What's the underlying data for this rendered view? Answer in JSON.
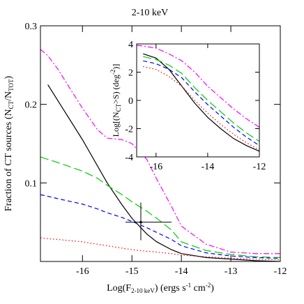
{
  "chart_data": [
    {
      "type": "line",
      "title": "2-10 keV",
      "xlabel": [
        {
          "text": "Log(F"
        },
        {
          "sub": "2-10 keV"
        },
        {
          "text": ") (ergs s"
        },
        {
          "sup": "-1"
        },
        {
          "text": " cm"
        },
        {
          "sup": "-2"
        },
        {
          "text": ")"
        }
      ],
      "ylabel": [
        {
          "text": "Fraction of CT sources (N"
        },
        {
          "sub": "CT"
        },
        {
          "text": "/N"
        },
        {
          "sub": "TOT"
        },
        {
          "text": ")"
        }
      ],
      "xlim": [
        -16.85,
        -12
      ],
      "ylim": [
        0,
        0.3
      ],
      "xticks": [
        -16,
        -15,
        -14,
        -13,
        -12
      ],
      "yticks": [
        0.1,
        0.2,
        0.3
      ],
      "x": [
        -16.85,
        -16.7,
        -16.5,
        -16,
        -15.7,
        -15.5,
        -15.2,
        -15,
        -14.7,
        -14.5,
        -14.2,
        -14,
        -13.5,
        -13,
        -12.5,
        -12
      ],
      "series": [
        {
          "color": "#000000",
          "linestyle": "solid",
          "values": [
            null,
            0.225,
            0.205,
            0.155,
            0.122,
            0.1,
            0.072,
            0.055,
            0.035,
            0.025,
            0.015,
            0.01,
            0.005,
            0.003,
            0.001,
            0.0
          ]
        },
        {
          "color": "#00cc00",
          "linestyle": "longdash",
          "values": [
            0.133,
            0.13,
            0.126,
            0.115,
            0.106,
            0.097,
            0.085,
            0.076,
            0.064,
            0.055,
            0.04,
            0.025,
            0.014,
            0.009,
            0.006,
            0.005
          ]
        },
        {
          "color": "#0000ff",
          "linestyle": "dash",
          "values": [
            0.085,
            0.083,
            0.08,
            0.073,
            0.067,
            0.062,
            0.056,
            0.051,
            0.043,
            0.037,
            0.028,
            0.02,
            0.011,
            0.007,
            0.005,
            0.004
          ]
        },
        {
          "color": "#ff0000",
          "linestyle": "dot",
          "values": [
            0.03,
            0.029,
            0.028,
            0.025,
            0.022,
            0.02,
            0.017,
            0.015,
            0.013,
            0.012,
            0.01,
            0.008,
            0.006,
            0.004,
            0.003,
            0.002
          ]
        },
        {
          "color": "#ff00ff",
          "linestyle": "dashdot",
          "values": [
            0.27,
            0.262,
            0.245,
            0.195,
            0.168,
            0.157,
            0.155,
            0.15,
            0.13,
            0.105,
            0.07,
            0.045,
            0.022,
            0.012,
            0.01,
            0.01
          ]
        }
      ],
      "points": [
        {
          "x": -14.82,
          "y": 0.05,
          "xerr": [
            0.31,
            0.62
          ],
          "yerr": [
            0.023,
            0.025
          ]
        }
      ]
    },
    {
      "type": "line",
      "ylabel": [
        {
          "text": "Log[(N"
        },
        {
          "sub": "CT"
        },
        {
          "text": ">S) (deg"
        },
        {
          "sup": "-2"
        },
        {
          "text": ")]"
        }
      ],
      "xlim": [
        -16.75,
        -12
      ],
      "ylim": [
        -4,
        4
      ],
      "xticks": [
        -16,
        -14,
        -12
      ],
      "yticks": [
        -4,
        -2,
        0,
        2,
        4
      ],
      "x": [
        -16.75,
        -16.5,
        -16,
        -15.5,
        -15,
        -14.5,
        -14,
        -13.5,
        -13,
        -12.5,
        -12
      ],
      "series": [
        {
          "color": "#000000",
          "linestyle": "solid",
          "values": [
            null,
            3.3,
            3.0,
            2.2,
            1.0,
            -0.2,
            -1.2,
            -2.0,
            -2.7,
            -3.2,
            -3.6
          ]
        },
        {
          "color": "#ff00ff",
          "linestyle": "dashdot",
          "values": [
            3.9,
            3.85,
            3.7,
            3.3,
            2.8,
            2.0,
            1.0,
            0.2,
            -0.6,
            -1.3,
            -1.9
          ]
        },
        {
          "color": "#00cc00",
          "linestyle": "longdash",
          "values": [
            null,
            3.1,
            2.9,
            2.5,
            1.9,
            0.9,
            0.0,
            -0.8,
            -1.6,
            -2.3,
            -2.9
          ]
        },
        {
          "color": "#0000ff",
          "linestyle": "dash",
          "values": [
            null,
            2.8,
            2.6,
            2.2,
            1.6,
            0.6,
            -0.3,
            -1.1,
            -1.9,
            -2.6,
            -3.2
          ]
        },
        {
          "color": "#ff0000",
          "linestyle": "dot",
          "values": [
            null,
            2.4,
            2.2,
            1.7,
            1.0,
            0.0,
            -0.9,
            -1.7,
            -2.4,
            -3.0,
            -3.5
          ]
        }
      ]
    }
  ]
}
